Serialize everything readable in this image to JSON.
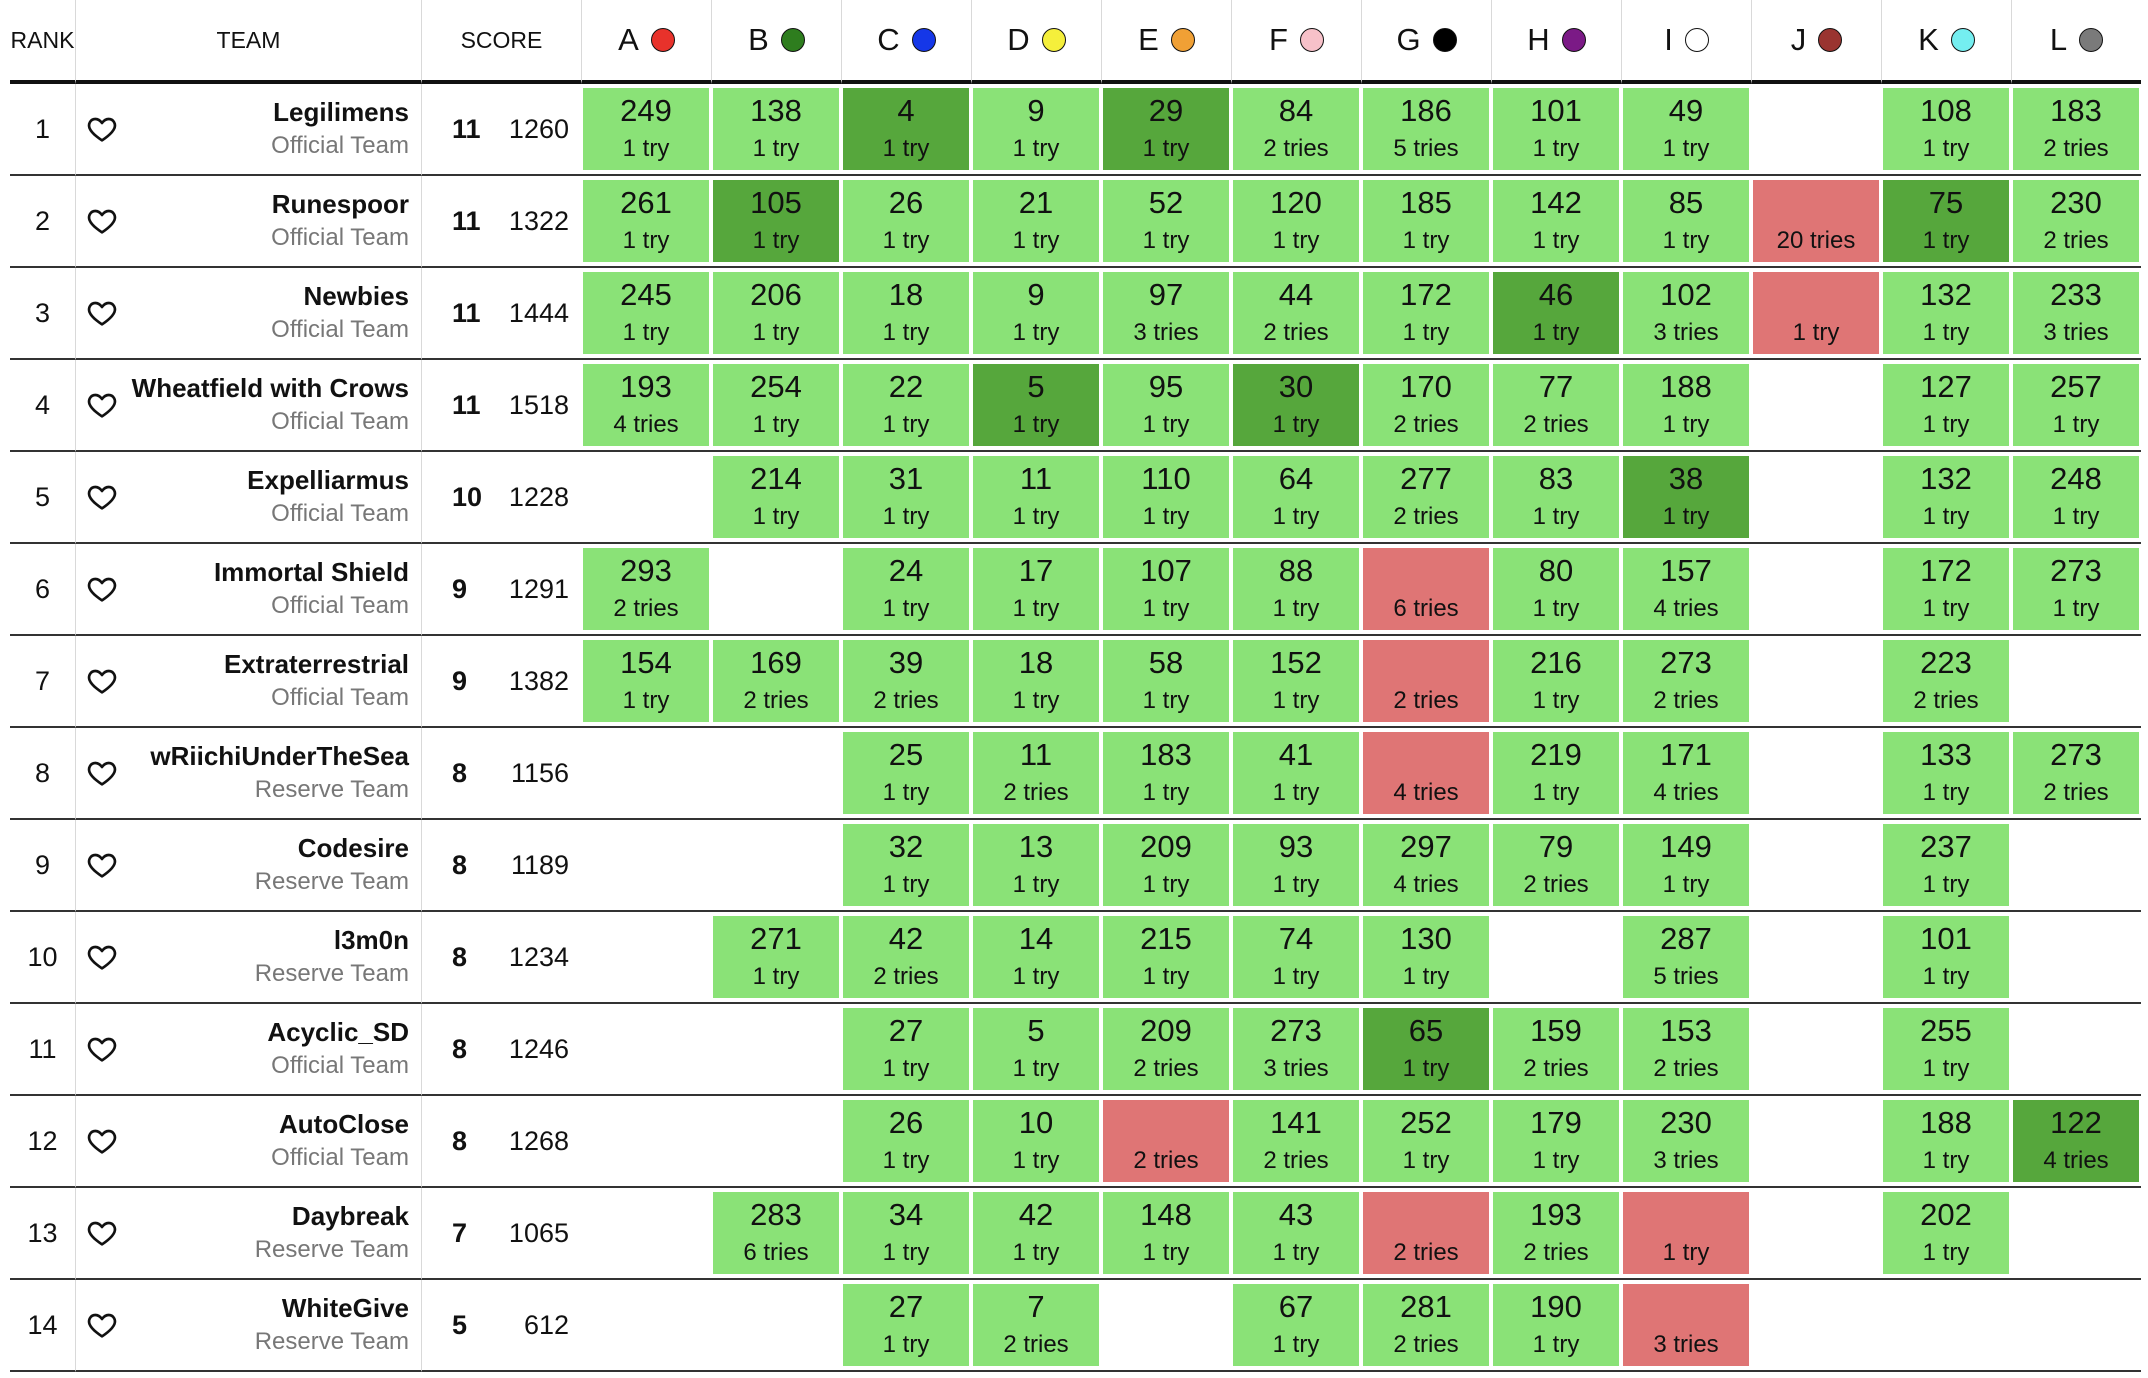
{
  "header": {
    "rank_label": "RANK",
    "team_label": "TEAM",
    "score_label": "SCORE"
  },
  "problems": [
    {
      "label": "A",
      "color": "#e8322b"
    },
    {
      "label": "B",
      "color": "#2e7d1e"
    },
    {
      "label": "C",
      "color": "#1537e8"
    },
    {
      "label": "D",
      "color": "#f5ef3b"
    },
    {
      "label": "E",
      "color": "#f0a035"
    },
    {
      "label": "F",
      "color": "#f7c1c9"
    },
    {
      "label": "G",
      "color": "#000000"
    },
    {
      "label": "H",
      "color": "#7b1a86"
    },
    {
      "label": "I",
      "color": "#ffffff"
    },
    {
      "label": "J",
      "color": "#9a3430"
    },
    {
      "label": "K",
      "color": "#74eef0"
    },
    {
      "label": "L",
      "color": "#7a7a7a"
    }
  ],
  "status_colors": {
    "solved": "#8ae277",
    "first_solve": "#56a73c",
    "failed": "#df7575"
  },
  "rows": [
    {
      "rank": "1",
      "team": "Legilimens",
      "type": "Official Team",
      "solved": "11",
      "penalty": "1260",
      "cells": [
        {
          "s": "solved",
          "time": "249",
          "tries": "1 try"
        },
        {
          "s": "solved",
          "time": "138",
          "tries": "1 try"
        },
        {
          "s": "first",
          "time": "4",
          "tries": "1 try"
        },
        {
          "s": "solved",
          "time": "9",
          "tries": "1 try"
        },
        {
          "s": "first",
          "time": "29",
          "tries": "1 try"
        },
        {
          "s": "solved",
          "time": "84",
          "tries": "2 tries"
        },
        {
          "s": "solved",
          "time": "186",
          "tries": "5 tries"
        },
        {
          "s": "solved",
          "time": "101",
          "tries": "1 try"
        },
        {
          "s": "solved",
          "time": "49",
          "tries": "1 try"
        },
        {
          "s": "none"
        },
        {
          "s": "solved",
          "time": "108",
          "tries": "1 try"
        },
        {
          "s": "solved",
          "time": "183",
          "tries": "2 tries"
        }
      ]
    },
    {
      "rank": "2",
      "team": "Runespoor",
      "type": "Official Team",
      "solved": "11",
      "penalty": "1322",
      "cells": [
        {
          "s": "solved",
          "time": "261",
          "tries": "1 try"
        },
        {
          "s": "first",
          "time": "105",
          "tries": "1 try"
        },
        {
          "s": "solved",
          "time": "26",
          "tries": "1 try"
        },
        {
          "s": "solved",
          "time": "21",
          "tries": "1 try"
        },
        {
          "s": "solved",
          "time": "52",
          "tries": "1 try"
        },
        {
          "s": "solved",
          "time": "120",
          "tries": "1 try"
        },
        {
          "s": "solved",
          "time": "185",
          "tries": "1 try"
        },
        {
          "s": "solved",
          "time": "142",
          "tries": "1 try"
        },
        {
          "s": "solved",
          "time": "85",
          "tries": "1 try"
        },
        {
          "s": "failed",
          "tries": "20 tries"
        },
        {
          "s": "first",
          "time": "75",
          "tries": "1 try"
        },
        {
          "s": "solved",
          "time": "230",
          "tries": "2 tries"
        }
      ]
    },
    {
      "rank": "3",
      "team": "Newbies",
      "type": "Official Team",
      "solved": "11",
      "penalty": "1444",
      "cells": [
        {
          "s": "solved",
          "time": "245",
          "tries": "1 try"
        },
        {
          "s": "solved",
          "time": "206",
          "tries": "1 try"
        },
        {
          "s": "solved",
          "time": "18",
          "tries": "1 try"
        },
        {
          "s": "solved",
          "time": "9",
          "tries": "1 try"
        },
        {
          "s": "solved",
          "time": "97",
          "tries": "3 tries"
        },
        {
          "s": "solved",
          "time": "44",
          "tries": "2 tries"
        },
        {
          "s": "solved",
          "time": "172",
          "tries": "1 try"
        },
        {
          "s": "first",
          "time": "46",
          "tries": "1 try"
        },
        {
          "s": "solved",
          "time": "102",
          "tries": "3 tries"
        },
        {
          "s": "failed",
          "tries": "1 try"
        },
        {
          "s": "solved",
          "time": "132",
          "tries": "1 try"
        },
        {
          "s": "solved",
          "time": "233",
          "tries": "3 tries"
        }
      ]
    },
    {
      "rank": "4",
      "team": "Wheatfield with Crows",
      "type": "Official Team",
      "solved": "11",
      "penalty": "1518",
      "cells": [
        {
          "s": "solved",
          "time": "193",
          "tries": "4 tries"
        },
        {
          "s": "solved",
          "time": "254",
          "tries": "1 try"
        },
        {
          "s": "solved",
          "time": "22",
          "tries": "1 try"
        },
        {
          "s": "first",
          "time": "5",
          "tries": "1 try"
        },
        {
          "s": "solved",
          "time": "95",
          "tries": "1 try"
        },
        {
          "s": "first",
          "time": "30",
          "tries": "1 try"
        },
        {
          "s": "solved",
          "time": "170",
          "tries": "2 tries"
        },
        {
          "s": "solved",
          "time": "77",
          "tries": "2 tries"
        },
        {
          "s": "solved",
          "time": "188",
          "tries": "1 try"
        },
        {
          "s": "none"
        },
        {
          "s": "solved",
          "time": "127",
          "tries": "1 try"
        },
        {
          "s": "solved",
          "time": "257",
          "tries": "1 try"
        }
      ]
    },
    {
      "rank": "5",
      "team": "Expelliarmus",
      "type": "Official Team",
      "solved": "10",
      "penalty": "1228",
      "cells": [
        {
          "s": "none"
        },
        {
          "s": "solved",
          "time": "214",
          "tries": "1 try"
        },
        {
          "s": "solved",
          "time": "31",
          "tries": "1 try"
        },
        {
          "s": "solved",
          "time": "11",
          "tries": "1 try"
        },
        {
          "s": "solved",
          "time": "110",
          "tries": "1 try"
        },
        {
          "s": "solved",
          "time": "64",
          "tries": "1 try"
        },
        {
          "s": "solved",
          "time": "277",
          "tries": "2 tries"
        },
        {
          "s": "solved",
          "time": "83",
          "tries": "1 try"
        },
        {
          "s": "first",
          "time": "38",
          "tries": "1 try"
        },
        {
          "s": "none"
        },
        {
          "s": "solved",
          "time": "132",
          "tries": "1 try"
        },
        {
          "s": "solved",
          "time": "248",
          "tries": "1 try"
        }
      ]
    },
    {
      "rank": "6",
      "team": "Immortal Shield",
      "type": "Official Team",
      "solved": "9",
      "penalty": "1291",
      "cells": [
        {
          "s": "solved",
          "time": "293",
          "tries": "2 tries"
        },
        {
          "s": "none"
        },
        {
          "s": "solved",
          "time": "24",
          "tries": "1 try"
        },
        {
          "s": "solved",
          "time": "17",
          "tries": "1 try"
        },
        {
          "s": "solved",
          "time": "107",
          "tries": "1 try"
        },
        {
          "s": "solved",
          "time": "88",
          "tries": "1 try"
        },
        {
          "s": "failed",
          "tries": "6 tries"
        },
        {
          "s": "solved",
          "time": "80",
          "tries": "1 try"
        },
        {
          "s": "solved",
          "time": "157",
          "tries": "4 tries"
        },
        {
          "s": "none"
        },
        {
          "s": "solved",
          "time": "172",
          "tries": "1 try"
        },
        {
          "s": "solved",
          "time": "273",
          "tries": "1 try"
        }
      ]
    },
    {
      "rank": "7",
      "team": "Extraterrestrial",
      "type": "Official Team",
      "solved": "9",
      "penalty": "1382",
      "cells": [
        {
          "s": "solved",
          "time": "154",
          "tries": "1 try"
        },
        {
          "s": "solved",
          "time": "169",
          "tries": "2 tries"
        },
        {
          "s": "solved",
          "time": "39",
          "tries": "2 tries"
        },
        {
          "s": "solved",
          "time": "18",
          "tries": "1 try"
        },
        {
          "s": "solved",
          "time": "58",
          "tries": "1 try"
        },
        {
          "s": "solved",
          "time": "152",
          "tries": "1 try"
        },
        {
          "s": "failed",
          "tries": "2 tries"
        },
        {
          "s": "solved",
          "time": "216",
          "tries": "1 try"
        },
        {
          "s": "solved",
          "time": "273",
          "tries": "2 tries"
        },
        {
          "s": "none"
        },
        {
          "s": "solved",
          "time": "223",
          "tries": "2 tries"
        },
        {
          "s": "none"
        }
      ]
    },
    {
      "rank": "8",
      "team": "wRiichiUnderTheSea",
      "type": "Reserve Team",
      "solved": "8",
      "penalty": "1156",
      "cells": [
        {
          "s": "none"
        },
        {
          "s": "none"
        },
        {
          "s": "solved",
          "time": "25",
          "tries": "1 try"
        },
        {
          "s": "solved",
          "time": "11",
          "tries": "2 tries"
        },
        {
          "s": "solved",
          "time": "183",
          "tries": "1 try"
        },
        {
          "s": "solved",
          "time": "41",
          "tries": "1 try"
        },
        {
          "s": "failed",
          "tries": "4 tries"
        },
        {
          "s": "solved",
          "time": "219",
          "tries": "1 try"
        },
        {
          "s": "solved",
          "time": "171",
          "tries": "4 tries"
        },
        {
          "s": "none"
        },
        {
          "s": "solved",
          "time": "133",
          "tries": "1 try"
        },
        {
          "s": "solved",
          "time": "273",
          "tries": "2 tries"
        }
      ]
    },
    {
      "rank": "9",
      "team": "Codesire",
      "type": "Reserve Team",
      "solved": "8",
      "penalty": "1189",
      "cells": [
        {
          "s": "none"
        },
        {
          "s": "none"
        },
        {
          "s": "solved",
          "time": "32",
          "tries": "1 try"
        },
        {
          "s": "solved",
          "time": "13",
          "tries": "1 try"
        },
        {
          "s": "solved",
          "time": "209",
          "tries": "1 try"
        },
        {
          "s": "solved",
          "time": "93",
          "tries": "1 try"
        },
        {
          "s": "solved",
          "time": "297",
          "tries": "4 tries"
        },
        {
          "s": "solved",
          "time": "79",
          "tries": "2 tries"
        },
        {
          "s": "solved",
          "time": "149",
          "tries": "1 try"
        },
        {
          "s": "none"
        },
        {
          "s": "solved",
          "time": "237",
          "tries": "1 try"
        },
        {
          "s": "none"
        }
      ]
    },
    {
      "rank": "10",
      "team": "l3m0n",
      "type": "Reserve Team",
      "solved": "8",
      "penalty": "1234",
      "cells": [
        {
          "s": "none"
        },
        {
          "s": "solved",
          "time": "271",
          "tries": "1 try"
        },
        {
          "s": "solved",
          "time": "42",
          "tries": "2 tries"
        },
        {
          "s": "solved",
          "time": "14",
          "tries": "1 try"
        },
        {
          "s": "solved",
          "time": "215",
          "tries": "1 try"
        },
        {
          "s": "solved",
          "time": "74",
          "tries": "1 try"
        },
        {
          "s": "solved",
          "time": "130",
          "tries": "1 try"
        },
        {
          "s": "none"
        },
        {
          "s": "solved",
          "time": "287",
          "tries": "5 tries"
        },
        {
          "s": "none"
        },
        {
          "s": "solved",
          "time": "101",
          "tries": "1 try"
        },
        {
          "s": "none"
        }
      ]
    },
    {
      "rank": "11",
      "team": "Acyclic_SD",
      "type": "Official Team",
      "solved": "8",
      "penalty": "1246",
      "cells": [
        {
          "s": "none"
        },
        {
          "s": "none"
        },
        {
          "s": "solved",
          "time": "27",
          "tries": "1 try"
        },
        {
          "s": "solved",
          "time": "5",
          "tries": "1 try"
        },
        {
          "s": "solved",
          "time": "209",
          "tries": "2 tries"
        },
        {
          "s": "solved",
          "time": "273",
          "tries": "3 tries"
        },
        {
          "s": "first",
          "time": "65",
          "tries": "1 try"
        },
        {
          "s": "solved",
          "time": "159",
          "tries": "2 tries"
        },
        {
          "s": "solved",
          "time": "153",
          "tries": "2 tries"
        },
        {
          "s": "none"
        },
        {
          "s": "solved",
          "time": "255",
          "tries": "1 try"
        },
        {
          "s": "none"
        }
      ]
    },
    {
      "rank": "12",
      "team": "AutoClose",
      "type": "Official Team",
      "solved": "8",
      "penalty": "1268",
      "cells": [
        {
          "s": "none"
        },
        {
          "s": "none"
        },
        {
          "s": "solved",
          "time": "26",
          "tries": "1 try"
        },
        {
          "s": "solved",
          "time": "10",
          "tries": "1 try"
        },
        {
          "s": "failed",
          "tries": "2 tries"
        },
        {
          "s": "solved",
          "time": "141",
          "tries": "2 tries"
        },
        {
          "s": "solved",
          "time": "252",
          "tries": "1 try"
        },
        {
          "s": "solved",
          "time": "179",
          "tries": "1 try"
        },
        {
          "s": "solved",
          "time": "230",
          "tries": "3 tries"
        },
        {
          "s": "none"
        },
        {
          "s": "solved",
          "time": "188",
          "tries": "1 try"
        },
        {
          "s": "first",
          "time": "122",
          "tries": "4 tries"
        }
      ]
    },
    {
      "rank": "13",
      "team": "Daybreak",
      "type": "Reserve Team",
      "solved": "7",
      "penalty": "1065",
      "cells": [
        {
          "s": "none"
        },
        {
          "s": "solved",
          "time": "283",
          "tries": "6 tries"
        },
        {
          "s": "solved",
          "time": "34",
          "tries": "1 try"
        },
        {
          "s": "solved",
          "time": "42",
          "tries": "1 try"
        },
        {
          "s": "solved",
          "time": "148",
          "tries": "1 try"
        },
        {
          "s": "solved",
          "time": "43",
          "tries": "1 try"
        },
        {
          "s": "failed",
          "tries": "2 tries"
        },
        {
          "s": "solved",
          "time": "193",
          "tries": "2 tries"
        },
        {
          "s": "failed",
          "tries": "1 try"
        },
        {
          "s": "none"
        },
        {
          "s": "solved",
          "time": "202",
          "tries": "1 try"
        },
        {
          "s": "none"
        }
      ]
    },
    {
      "rank": "14",
      "team": "WhiteGive",
      "type": "Reserve Team",
      "solved": "5",
      "penalty": "612",
      "cells": [
        {
          "s": "none"
        },
        {
          "s": "none"
        },
        {
          "s": "solved",
          "time": "27",
          "tries": "1 try"
        },
        {
          "s": "solved",
          "time": "7",
          "tries": "2 tries"
        },
        {
          "s": "none"
        },
        {
          "s": "solved",
          "time": "67",
          "tries": "1 try"
        },
        {
          "s": "solved",
          "time": "281",
          "tries": "2 tries"
        },
        {
          "s": "solved",
          "time": "190",
          "tries": "1 try"
        },
        {
          "s": "failed",
          "tries": "3 tries"
        },
        {
          "s": "none"
        },
        {
          "s": "none"
        },
        {
          "s": "none"
        }
      ]
    }
  ]
}
